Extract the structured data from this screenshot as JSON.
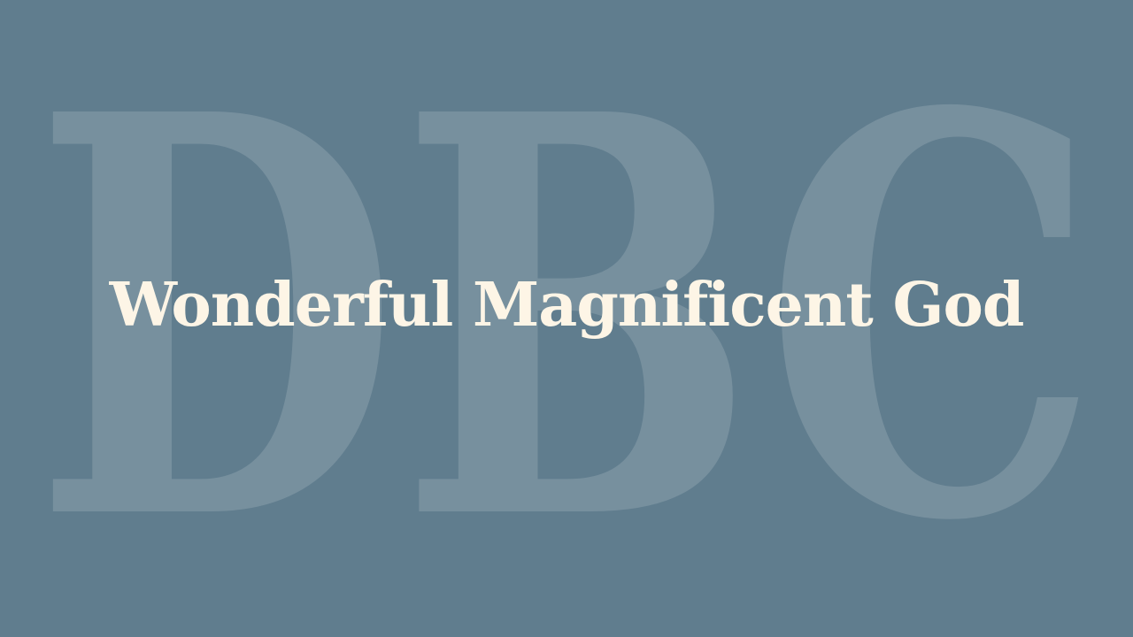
{
  "slide": {
    "watermark_text": "DBC",
    "title": "Wonderful Magnificent God",
    "colors": {
      "background": "#607d8e",
      "title": "#fdf5e6",
      "watermark": "#ffffff"
    }
  }
}
